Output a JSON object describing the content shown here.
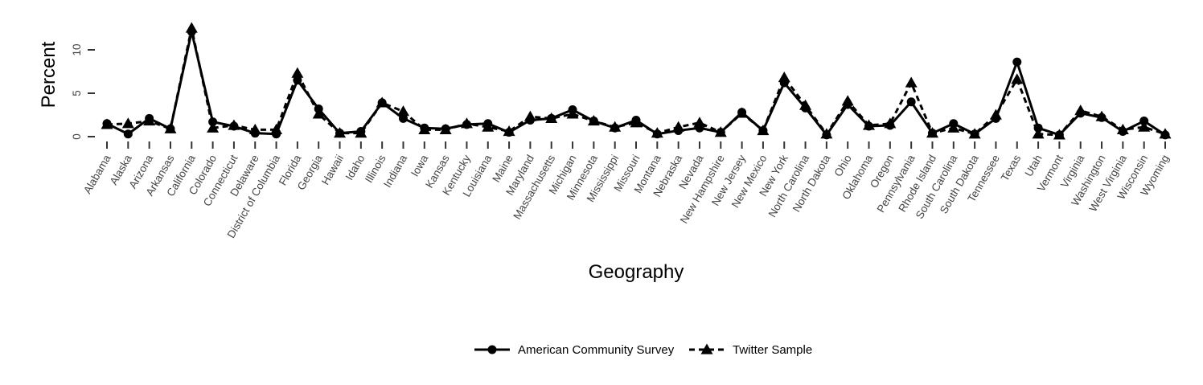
{
  "chart_data": {
    "type": "line",
    "title": "",
    "xlabel": "Geography",
    "ylabel": "Percent",
    "ylim": [
      0,
      12.5
    ],
    "yticks": [
      0,
      5,
      10
    ],
    "grid": false,
    "legend_position": "bottom",
    "categories": [
      "Alabama",
      "Alaska",
      "Arizona",
      "Arkansas",
      "California",
      "Colorado",
      "Connecticut",
      "Delaware",
      "District of Columbia",
      "Florida",
      "Georgia",
      "Hawaii",
      "Idaho",
      "Illinois",
      "Indiana",
      "Iowa",
      "Kansas",
      "Kentucky",
      "Louisiana",
      "Maine",
      "Maryland",
      "Massachusetts",
      "Michigan",
      "Minnesota",
      "Mississippi",
      "Missouri",
      "Montana",
      "Nebraska",
      "Nevada",
      "New Hampshire",
      "New Jersey",
      "New Mexico",
      "New York",
      "North Carolina",
      "North Dakota",
      "Ohio",
      "Oklahoma",
      "Oregon",
      "Pennsylvania",
      "Rhode Island",
      "South Carolina",
      "South Dakota",
      "Tennessee",
      "Texas",
      "Utah",
      "Vermont",
      "Virginia",
      "Washington",
      "West Virginia",
      "Wisconsin",
      "Wyoming"
    ],
    "series": [
      {
        "name": "American Community Survey",
        "line_style": "solid",
        "marker": "circle",
        "values": [
          1.5,
          0.3,
          2.1,
          0.9,
          12.1,
          1.7,
          1.2,
          0.4,
          0.3,
          6.5,
          3.2,
          0.4,
          0.6,
          3.9,
          2.1,
          1.0,
          0.9,
          1.4,
          1.5,
          0.5,
          1.9,
          2.1,
          3.1,
          1.8,
          1.0,
          1.9,
          0.3,
          0.7,
          1.0,
          0.5,
          2.8,
          0.7,
          6.2,
          3.3,
          0.2,
          3.7,
          1.2,
          1.3,
          4.0,
          0.4,
          1.5,
          0.3,
          2.1,
          8.6,
          1.0,
          0.2,
          2.7,
          2.2,
          0.6,
          1.8,
          0.2
        ]
      },
      {
        "name": "Twitter Sample",
        "line_style": "dashed",
        "marker": "triangle",
        "values": [
          1.4,
          1.5,
          1.8,
          0.9,
          12.5,
          1.0,
          1.3,
          0.8,
          0.8,
          7.3,
          2.6,
          0.4,
          0.4,
          3.9,
          2.9,
          0.8,
          0.8,
          1.5,
          1.1,
          0.6,
          2.3,
          2.1,
          2.6,
          1.8,
          1.1,
          1.6,
          0.4,
          1.1,
          1.6,
          0.5,
          2.7,
          0.7,
          6.8,
          3.6,
          0.3,
          4.1,
          1.3,
          1.5,
          6.2,
          0.4,
          1.0,
          0.3,
          2.5,
          6.6,
          0.3,
          0.2,
          3.0,
          2.3,
          0.8,
          1.1,
          0.3
        ]
      }
    ]
  }
}
